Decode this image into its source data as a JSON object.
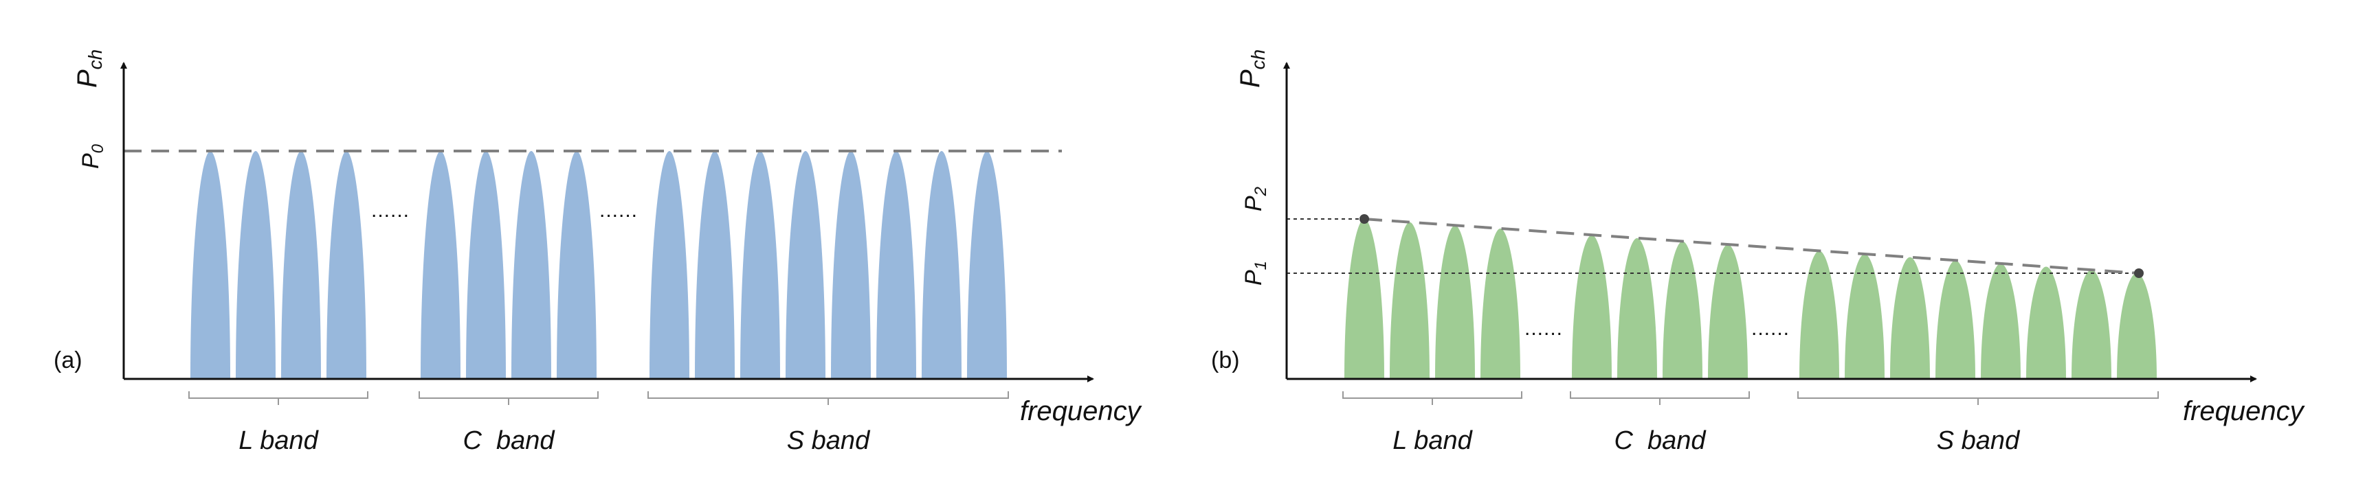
{
  "panel_a": {
    "tag": "(a)",
    "y_axis_label": "P",
    "y_axis_sub": "ch",
    "x_axis_label": "frequency",
    "level_label": "P",
    "level_sub": "0",
    "dots": "......",
    "bands": [
      {
        "label": "L band",
        "channels": 4
      },
      {
        "label": "C  band",
        "channels": 4
      },
      {
        "label": "S band",
        "channels": 8
      }
    ],
    "fill_color": "#98b8dc"
  },
  "panel_b": {
    "tag": "(b)",
    "y_axis_label": "P",
    "y_axis_sub": "ch",
    "x_axis_label": "frequency",
    "level_high_label": "P",
    "level_high_sub": "2",
    "level_low_label": "P",
    "level_low_sub": "1",
    "dots": "......",
    "bands": [
      {
        "label": "L band",
        "channels": 4
      },
      {
        "label": "C  band",
        "channels": 4
      },
      {
        "label": "S band",
        "channels": 8
      }
    ],
    "fill_color": "#9fcc94"
  }
}
